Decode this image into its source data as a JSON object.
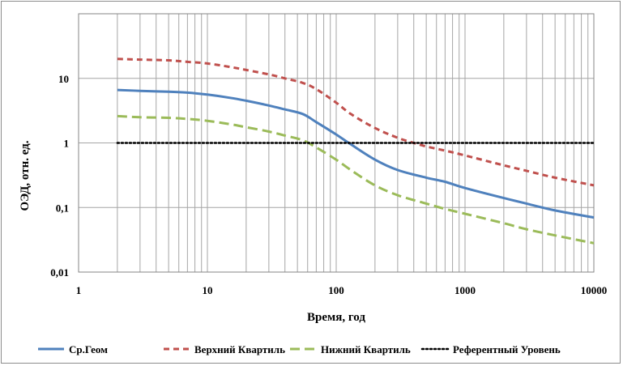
{
  "chart_data": {
    "type": "line",
    "title": "",
    "xlabel": "Время, год",
    "ylabel": "ОЭД, отн. ед.",
    "x_scale": "log",
    "y_scale": "log",
    "xlim": [
      1,
      10000
    ],
    "ylim": [
      0.01,
      100
    ],
    "x_ticks": [
      {
        "value": 1,
        "label": "1"
      },
      {
        "value": 10,
        "label": "10"
      },
      {
        "value": 100,
        "label": "100"
      },
      {
        "value": 1000,
        "label": "1000"
      },
      {
        "value": 10000,
        "label": "10000"
      }
    ],
    "y_ticks": [
      {
        "value": 0.01,
        "label": "0,01"
      },
      {
        "value": 0.1,
        "label": "0,1"
      },
      {
        "value": 1,
        "label": "1"
      },
      {
        "value": 10,
        "label": "10"
      }
    ],
    "grid": {
      "x_minor": true,
      "y_major": true
    },
    "legend_position": "bottom",
    "series": [
      {
        "name": "Ср.Геом",
        "color": "#4f81bd",
        "dash": "solid",
        "x": [
          2,
          3,
          5,
          7,
          10,
          15,
          20,
          30,
          40,
          55,
          70,
          100,
          130,
          200,
          300,
          500,
          700,
          1000,
          2000,
          3000,
          5000,
          10000
        ],
        "y": [
          6.6,
          6.4,
          6.2,
          6.0,
          5.6,
          5.0,
          4.5,
          3.8,
          3.3,
          2.8,
          2.1,
          1.35,
          0.95,
          0.55,
          0.38,
          0.29,
          0.25,
          0.2,
          0.14,
          0.115,
          0.09,
          0.07
        ]
      },
      {
        "name": "Верхний Квартиль",
        "color": "#c0504d",
        "dash": "dashed",
        "x": [
          2,
          3,
          5,
          7,
          10,
          15,
          20,
          30,
          40,
          55,
          70,
          100,
          130,
          200,
          300,
          400,
          500,
          700,
          1000,
          2000,
          3000,
          5000,
          10000
        ],
        "y": [
          20,
          19.5,
          19,
          18,
          17,
          15,
          13.5,
          11.5,
          10,
          8.5,
          6.8,
          4.2,
          2.8,
          1.7,
          1.2,
          1.0,
          0.88,
          0.76,
          0.64,
          0.45,
          0.37,
          0.29,
          0.22
        ]
      },
      {
        "name": "Нижний Квартиль",
        "color": "#9bbb59",
        "dash": "long-dashed",
        "x": [
          2,
          3,
          5,
          7,
          10,
          15,
          20,
          30,
          40,
          55,
          70,
          100,
          130,
          200,
          300,
          500,
          700,
          1000,
          2000,
          3000,
          5000,
          10000
        ],
        "y": [
          2.6,
          2.5,
          2.45,
          2.35,
          2.2,
          1.95,
          1.75,
          1.5,
          1.3,
          1.1,
          0.85,
          0.55,
          0.38,
          0.22,
          0.155,
          0.115,
          0.095,
          0.08,
          0.057,
          0.046,
          0.037,
          0.028
        ]
      },
      {
        "name": "Референтный Уровень",
        "color": "#000000",
        "dash": "dotted",
        "x": [
          2,
          10000
        ],
        "y": [
          1,
          1
        ]
      }
    ]
  }
}
